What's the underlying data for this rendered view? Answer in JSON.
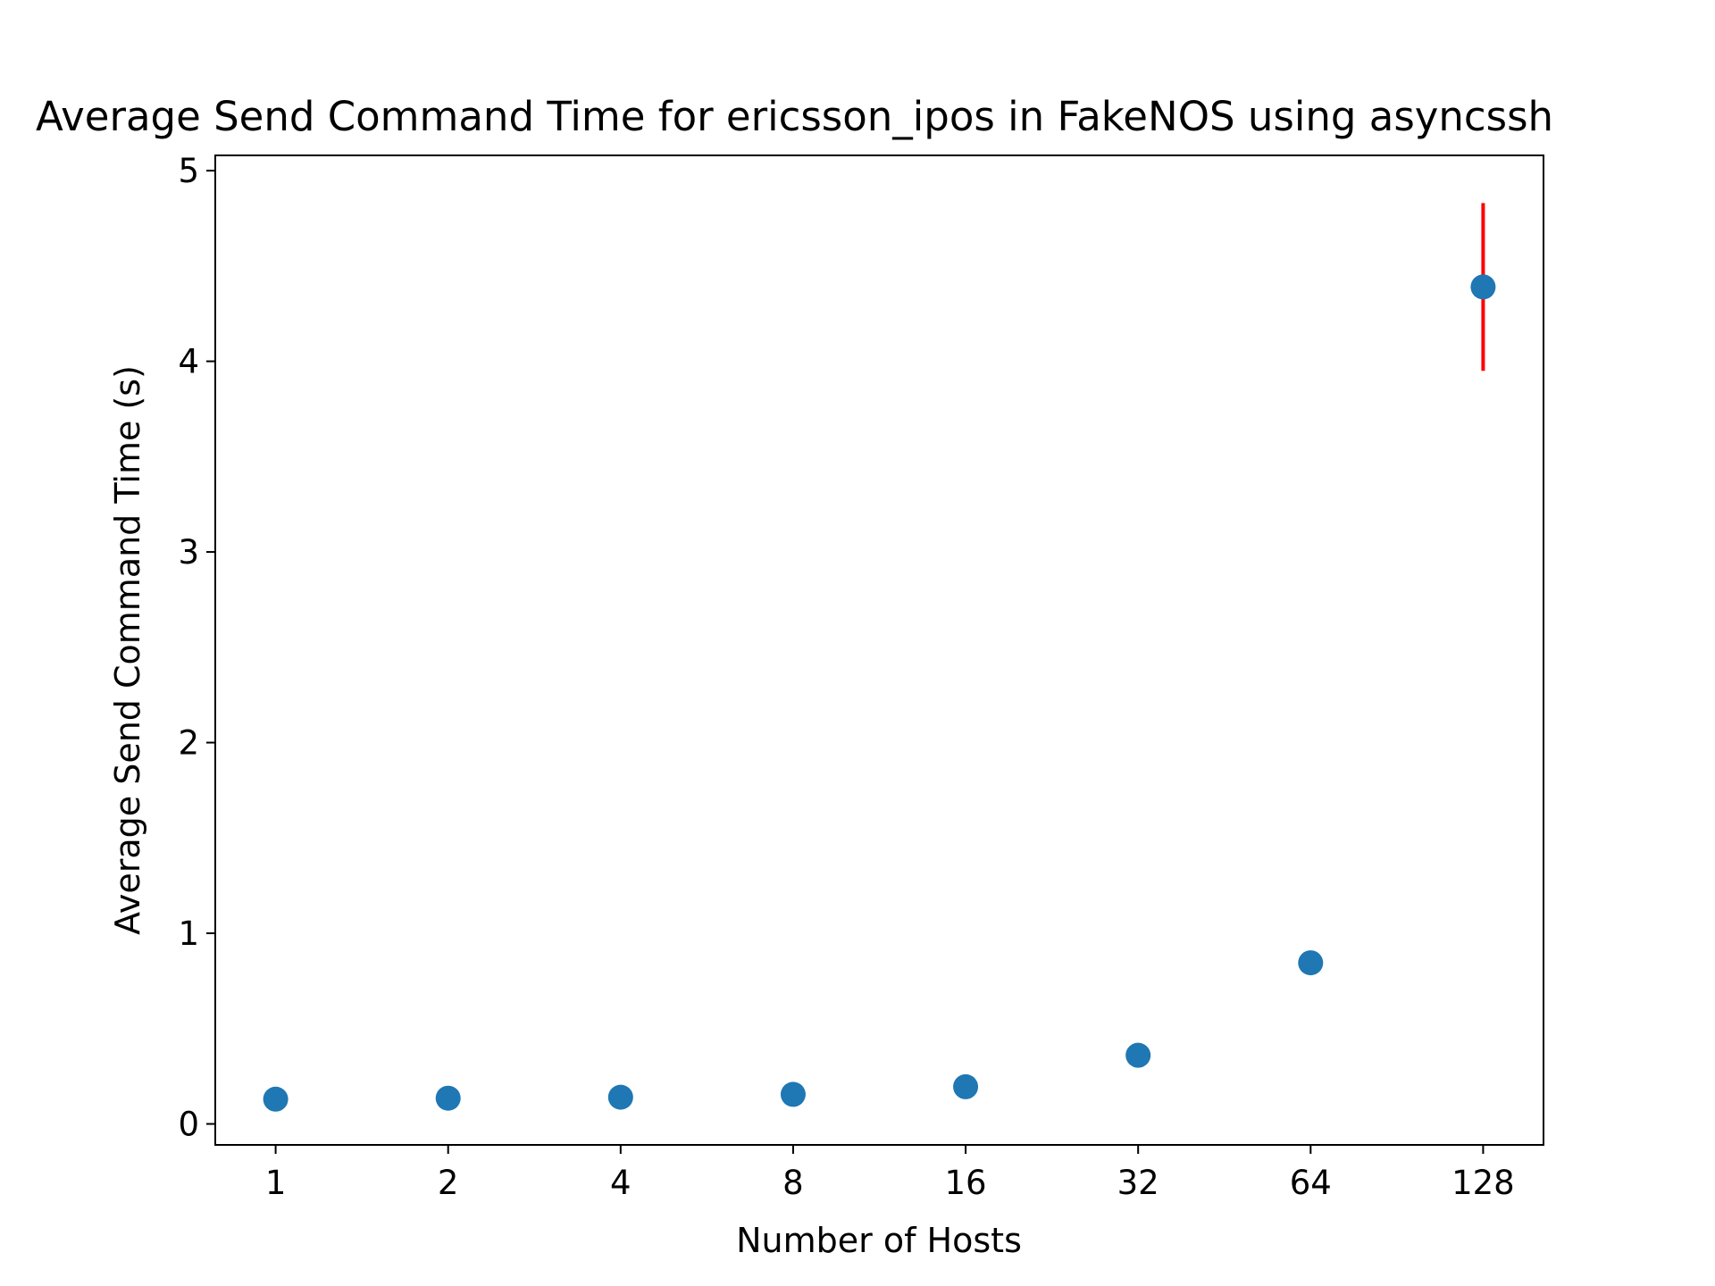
{
  "chart_data": {
    "type": "scatter",
    "title": "Average Send Command Time for ericsson_ipos in FakeNOS using asyncssh",
    "xlabel": "Number of Hosts",
    "ylabel": "Average Send Command Time (s)",
    "x_scale": "log2",
    "x_ticks": [
      1,
      2,
      4,
      8,
      16,
      32,
      64,
      128
    ],
    "x_tick_labels": [
      "1",
      "2",
      "4",
      "8",
      "16",
      "32",
      "64",
      "128"
    ],
    "y_ticks": [
      0,
      1,
      2,
      3,
      4,
      5
    ],
    "y_tick_labels": [
      "0",
      "1",
      "2",
      "3",
      "4",
      "5"
    ],
    "ylim": [
      -0.11,
      5.08
    ],
    "grid": false,
    "series": [
      {
        "x": [
          1,
          2,
          4,
          8,
          16,
          32,
          64,
          128
        ],
        "y": [
          0.13,
          0.135,
          0.14,
          0.155,
          0.195,
          0.36,
          0.845,
          4.39
        ],
        "yerr": [
          0,
          0,
          0,
          0,
          0,
          0,
          0,
          0.44
        ],
        "color": "#1f77b4",
        "error_color": "#ff0000"
      }
    ]
  }
}
